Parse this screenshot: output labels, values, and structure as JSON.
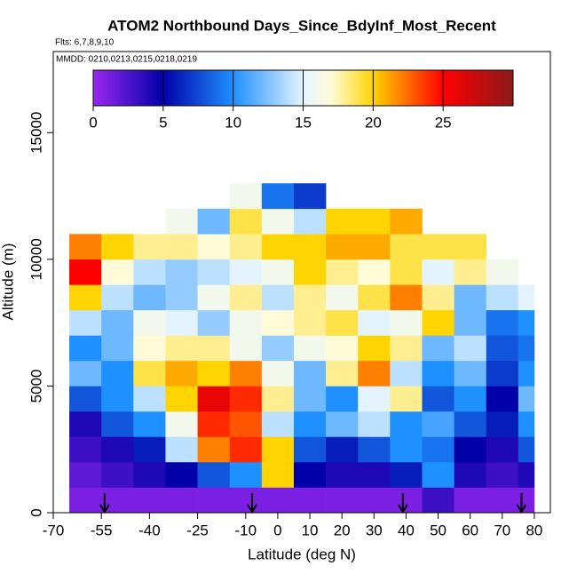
{
  "chart_data": {
    "type": "heatmap",
    "title": "ATOM2 Northbound Days_Since_BdyInf_Most_Recent",
    "subtitle": "Flts: 6,7,8,9,10",
    "annotation": "MMDD: 0210,0213,0215,0218,0219",
    "x_label": "Latitude (deg N)",
    "y_label": "Altitude (m)",
    "xlim": [
      -70,
      85
    ],
    "ylim": [
      0,
      18200
    ],
    "xticks": [
      -70,
      -55,
      -40,
      -25,
      -10,
      0,
      10,
      20,
      30,
      40,
      50,
      60,
      70,
      80
    ],
    "yticks": [
      0,
      5000,
      10000,
      15000
    ],
    "x_edges": [
      -65,
      -55,
      -45,
      -35,
      -25,
      -15,
      -5,
      5,
      15,
      25,
      35,
      45,
      55,
      65,
      75,
      80
    ],
    "y_edges": [
      0,
      1000,
      2000,
      3000,
      4000,
      5000,
      6000,
      7000,
      8000,
      9000,
      10000,
      11000,
      12000,
      13000
    ],
    "values": [
      [
        1,
        1,
        1,
        1,
        1,
        1,
        1,
        1,
        1,
        1,
        1,
        3,
        1,
        1,
        1
      ],
      [
        2,
        3,
        4,
        5,
        8,
        10,
        20,
        5,
        4,
        4,
        6,
        10,
        4,
        3,
        4
      ],
      [
        3,
        4,
        6,
        14,
        22,
        24,
        20,
        8,
        6,
        8,
        10,
        9,
        5,
        4,
        8
      ],
      [
        4,
        8,
        10,
        16,
        24,
        23,
        14,
        10,
        12,
        14,
        10,
        11,
        8,
        6,
        10
      ],
      [
        8,
        10,
        14,
        20,
        26,
        24,
        18,
        12,
        10,
        15,
        18,
        8,
        10,
        5,
        12
      ],
      [
        12,
        10,
        19,
        21,
        20,
        22,
        16,
        12,
        18,
        22,
        14,
        10,
        12,
        7,
        10
      ],
      [
        10,
        12,
        17,
        18,
        18,
        16,
        13,
        16,
        17,
        20,
        18,
        12,
        14,
        8,
        9
      ],
      [
        14,
        12,
        16,
        15,
        13,
        16,
        17,
        18,
        19,
        15,
        16,
        20,
        12,
        9,
        10
      ],
      [
        20,
        14,
        12,
        13,
        16,
        18,
        14,
        18,
        16,
        19,
        22,
        18,
        12,
        14,
        15
      ],
      [
        25,
        17,
        14,
        13,
        14,
        15,
        16,
        20,
        18,
        17,
        19,
        15,
        18,
        16,
        null
      ],
      [
        22,
        20,
        18,
        18,
        17,
        18,
        20,
        20,
        21,
        21,
        19,
        19,
        19,
        null,
        null
      ],
      [
        null,
        null,
        null,
        16,
        12,
        19,
        16,
        14,
        20,
        20,
        21,
        null,
        null,
        null,
        null
      ],
      [
        null,
        null,
        null,
        null,
        null,
        16,
        9,
        7,
        null,
        null,
        null,
        null,
        null,
        null,
        null
      ]
    ],
    "colorbar_lim": [
      0,
      30
    ],
    "colorbar_ticks": [
      0,
      5,
      10,
      15,
      20,
      25
    ],
    "colorscale": [
      {
        "value": 0,
        "color": "#9a28f0"
      },
      {
        "value": 5,
        "color": "#0000a8"
      },
      {
        "value": 10,
        "color": "#1e90ff"
      },
      {
        "value": 15,
        "color": "#e4f4ff"
      },
      {
        "value": 17,
        "color": "#fffbd8"
      },
      {
        "value": 20,
        "color": "#ffd400"
      },
      {
        "value": 25,
        "color": "#ff0000"
      },
      {
        "value": 30,
        "color": "#8b1a1a"
      }
    ],
    "flight_markers": [
      -54,
      -8,
      39,
      76
    ]
  }
}
